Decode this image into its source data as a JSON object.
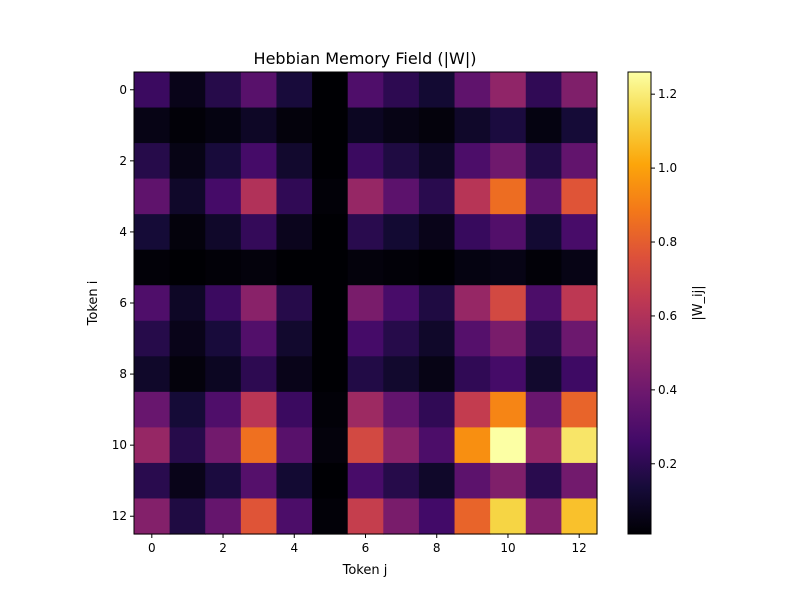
{
  "chart_data": {
    "type": "heatmap",
    "title": "Hebbian Memory Field (|W|)",
    "xlabel": "Token j",
    "ylabel": "Token i",
    "colorbar_label": "|W_ij|",
    "colormap": "inferno",
    "x_ticks": [
      "0",
      "2",
      "4",
      "6",
      "8",
      "10",
      "12"
    ],
    "y_ticks": [
      "0",
      "2",
      "4",
      "6",
      "8",
      "10",
      "12"
    ],
    "colorbar_ticks": [
      "0.2",
      "0.4",
      "0.6",
      "0.8",
      "1.0",
      "1.2"
    ],
    "colorbar_tick_values": [
      0.2,
      0.4,
      0.6,
      0.8,
      1.0,
      1.2
    ],
    "vmin": 0.01,
    "vmax": 1.26,
    "matrix": [
      [
        0.24,
        0.06,
        0.18,
        0.33,
        0.14,
        0.01,
        0.3,
        0.2,
        0.12,
        0.35,
        0.5,
        0.21,
        0.45
      ],
      [
        0.05,
        0.02,
        0.04,
        0.09,
        0.03,
        0.0,
        0.08,
        0.05,
        0.03,
        0.1,
        0.15,
        0.04,
        0.13
      ],
      [
        0.18,
        0.05,
        0.14,
        0.27,
        0.11,
        0.01,
        0.24,
        0.16,
        0.09,
        0.29,
        0.4,
        0.17,
        0.36
      ],
      [
        0.35,
        0.1,
        0.27,
        0.6,
        0.21,
        0.02,
        0.52,
        0.34,
        0.19,
        0.62,
        0.85,
        0.35,
        0.77
      ],
      [
        0.13,
        0.03,
        0.1,
        0.22,
        0.07,
        0.01,
        0.19,
        0.12,
        0.06,
        0.23,
        0.31,
        0.12,
        0.28
      ],
      [
        0.02,
        0.01,
        0.02,
        0.03,
        0.01,
        0.0,
        0.03,
        0.02,
        0.01,
        0.04,
        0.05,
        0.02,
        0.05
      ],
      [
        0.3,
        0.09,
        0.24,
        0.48,
        0.18,
        0.01,
        0.43,
        0.28,
        0.16,
        0.52,
        0.72,
        0.29,
        0.64
      ],
      [
        0.18,
        0.06,
        0.14,
        0.31,
        0.11,
        0.01,
        0.27,
        0.18,
        0.1,
        0.32,
        0.43,
        0.18,
        0.39
      ],
      [
        0.1,
        0.03,
        0.08,
        0.2,
        0.06,
        0.01,
        0.17,
        0.11,
        0.05,
        0.21,
        0.27,
        0.11,
        0.25
      ],
      [
        0.38,
        0.13,
        0.3,
        0.63,
        0.24,
        0.02,
        0.54,
        0.36,
        0.21,
        0.66,
        0.92,
        0.38,
        0.82
      ],
      [
        0.52,
        0.18,
        0.41,
        0.86,
        0.33,
        0.03,
        0.72,
        0.48,
        0.29,
        0.95,
        1.26,
        0.51,
        1.18
      ],
      [
        0.19,
        0.06,
        0.15,
        0.32,
        0.12,
        0.01,
        0.28,
        0.18,
        0.1,
        0.34,
        0.45,
        0.19,
        0.41
      ],
      [
        0.46,
        0.16,
        0.37,
        0.77,
        0.29,
        0.02,
        0.67,
        0.43,
        0.26,
        0.82,
        1.13,
        0.46,
        1.08
      ]
    ],
    "grid": false
  }
}
